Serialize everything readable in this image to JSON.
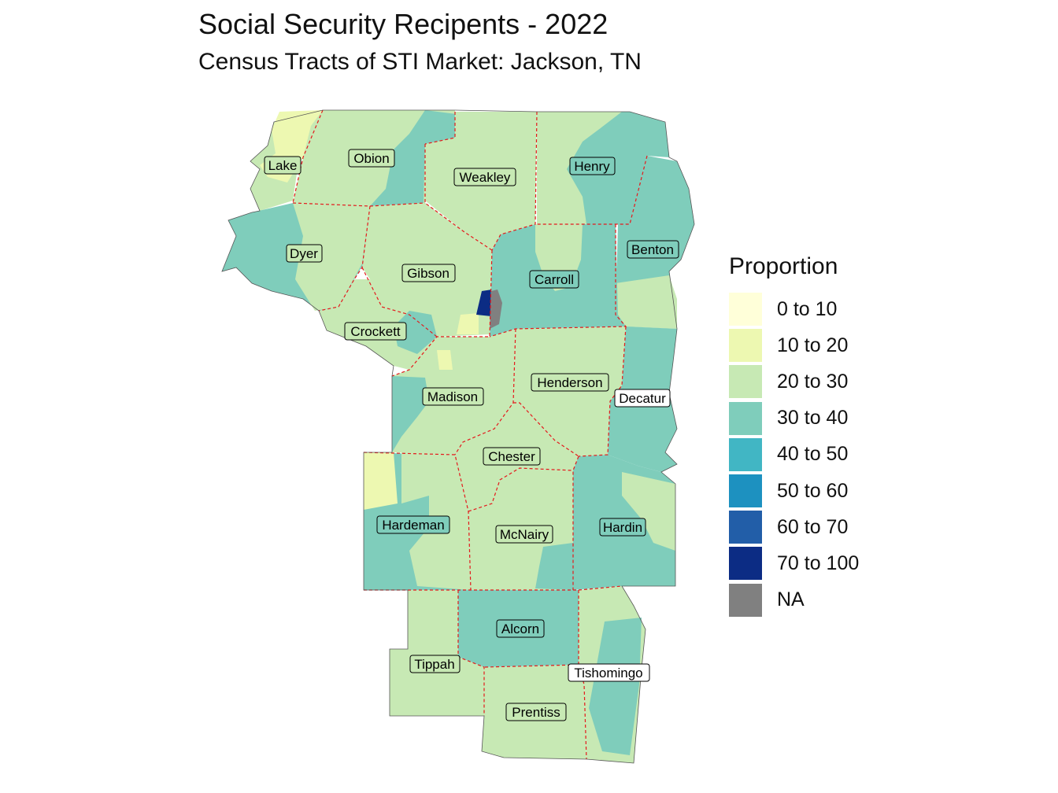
{
  "title": "Social Security Recipents - 2022",
  "subtitle": "Census Tracts of STI Market: Jackson, TN",
  "legend": {
    "title": "Proportion",
    "items": [
      {
        "label": "0 to 10",
        "color": "#ffffd9"
      },
      {
        "label": "10 to 20",
        "color": "#edf8b1"
      },
      {
        "label": "20 to 30",
        "color": "#c7e9b4"
      },
      {
        "label": "30 to 40",
        "color": "#7fcdbb"
      },
      {
        "label": "40 to 50",
        "color": "#41b6c4"
      },
      {
        "label": "50 to 60",
        "color": "#1d91c0"
      },
      {
        "label": "60 to 70",
        "color": "#225ea8"
      },
      {
        "label": "70 to 100",
        "color": "#0c2c84"
      },
      {
        "label": "NA",
        "color": "#808080"
      }
    ]
  },
  "counties": [
    {
      "name": "Lake",
      "category": "20 to 30"
    },
    {
      "name": "Obion",
      "category": "20 to 30"
    },
    {
      "name": "Weakley",
      "category": "20 to 30"
    },
    {
      "name": "Henry",
      "category": "30 to 40"
    },
    {
      "name": "Dyer",
      "category": "30 to 40"
    },
    {
      "name": "Benton",
      "category": "30 to 40"
    },
    {
      "name": "Gibson",
      "category": "20 to 30"
    },
    {
      "name": "Carroll",
      "category": "30 to 40"
    },
    {
      "name": "Crockett",
      "category": "20 to 30"
    },
    {
      "name": "Madison",
      "category": "20 to 30"
    },
    {
      "name": "Henderson",
      "category": "20 to 30"
    },
    {
      "name": "Decatur",
      "category": "30 to 40"
    },
    {
      "name": "Chester",
      "category": "20 to 30"
    },
    {
      "name": "Hardeman",
      "category": "30 to 40"
    },
    {
      "name": "McNairy",
      "category": "20 to 30"
    },
    {
      "name": "Hardin",
      "category": "30 to 40"
    },
    {
      "name": "Alcorn",
      "category": "30 to 40"
    },
    {
      "name": "Tippah",
      "category": "20 to 30"
    },
    {
      "name": "Tishomingo",
      "category": "30 to 40"
    },
    {
      "name": "Prentiss",
      "category": "20 to 30"
    }
  ],
  "boundary_color": "#e41a1c"
}
